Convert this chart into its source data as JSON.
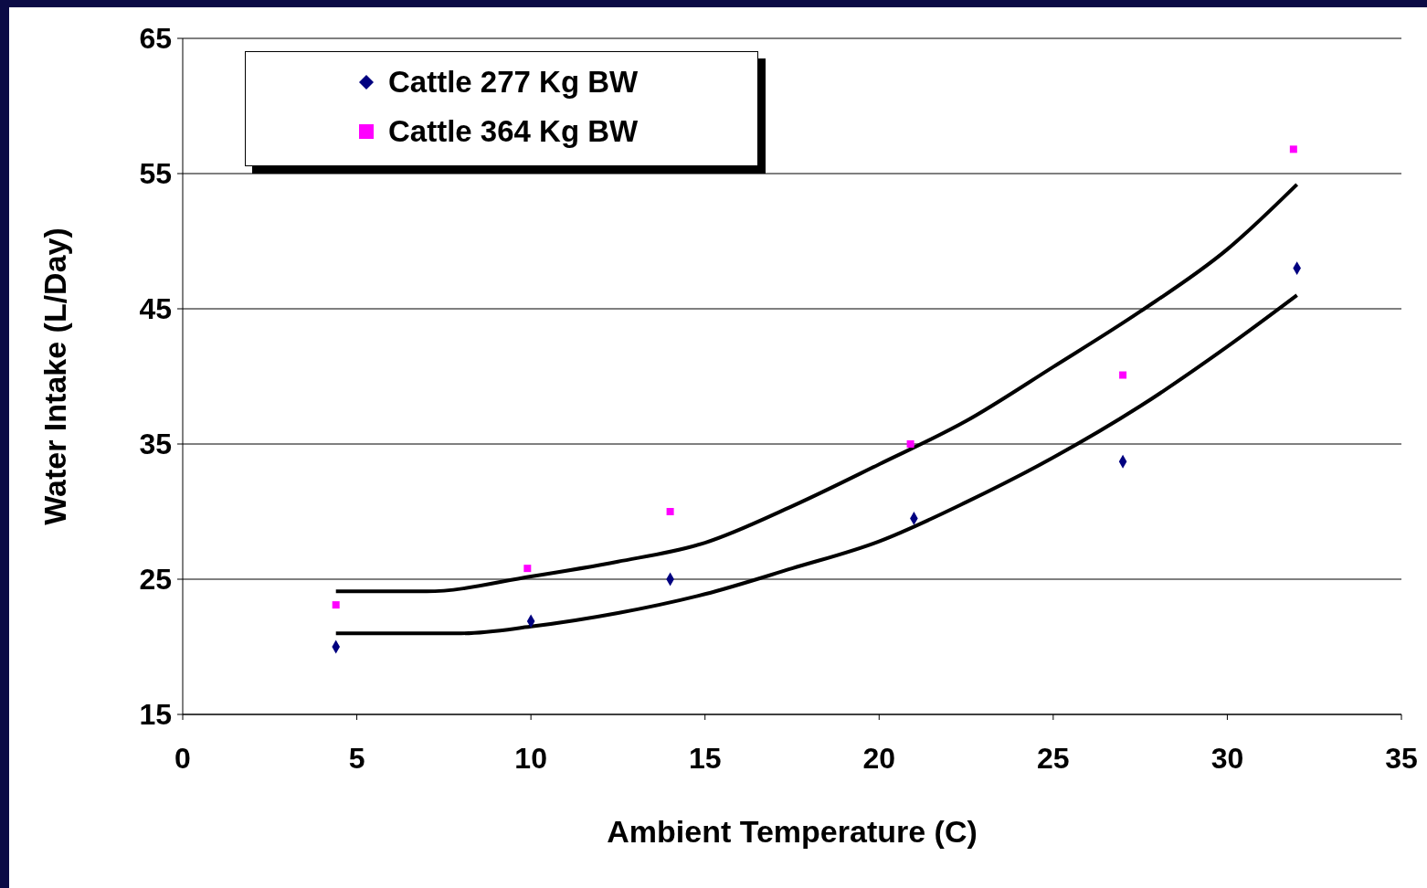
{
  "chart_data": {
    "type": "scatter",
    "xlabel": "Ambient Temperature (C)",
    "ylabel": "Water Intake (L/Day)",
    "xlim": [
      0,
      35
    ],
    "xticks": [
      0,
      5,
      10,
      15,
      20,
      25,
      30,
      35
    ],
    "ylim": [
      15,
      65
    ],
    "yticks": [
      15,
      25,
      35,
      45,
      55,
      65
    ],
    "grid": "y",
    "legend": "top left",
    "series": [
      {
        "name": "Cattle 277 Kg BW",
        "color": "#000080",
        "marker": "diamond",
        "x": [
          4.4,
          10,
          14,
          21,
          27,
          32
        ],
        "values": [
          20,
          21.9,
          25,
          29.5,
          33.7,
          48
        ]
      },
      {
        "name": "Cattle 364 Kg BW",
        "color": "#ff00ff",
        "marker": "square",
        "x": [
          4.4,
          9.9,
          14,
          20.9,
          27,
          31.9
        ],
        "values": [
          23.1,
          25.8,
          30,
          35,
          40.1,
          56.8
        ]
      },
      {
        "type": "line",
        "color": "#000000",
        "marker": "none",
        "x": [
          4.4,
          7,
          10,
          12.5,
          15,
          17.5,
          20,
          22.5,
          25,
          27.5,
          30,
          32
        ],
        "values": [
          24.1,
          24.1,
          25.2,
          26.3,
          27.7,
          30.4,
          33.5,
          36.7,
          40.7,
          44.8,
          49.4,
          54.2
        ]
      },
      {
        "type": "line",
        "color": "#000000",
        "marker": "none",
        "x": [
          4.4,
          8,
          10,
          12.5,
          15,
          17.5,
          20,
          22.5,
          25,
          27.5,
          30,
          32
        ],
        "values": [
          21,
          21,
          21.5,
          22.5,
          23.9,
          25.8,
          27.8,
          30.7,
          34,
          37.8,
          42.2,
          46
        ]
      }
    ]
  }
}
